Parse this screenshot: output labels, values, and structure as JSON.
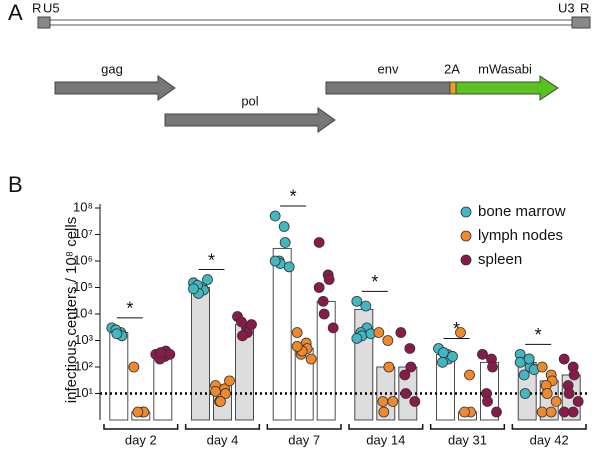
{
  "diagram": {
    "panel": "A",
    "ltr_left": [
      "R",
      "U5"
    ],
    "ltr_right": [
      "U3",
      "R"
    ],
    "genes": [
      "gag",
      "pol",
      "env",
      "2A",
      "mWasabi"
    ]
  },
  "chart_data": {
    "type": "dot_bar",
    "panel": "B",
    "y_label": "infectious centers / 10⁸ cells",
    "categories": [
      "day 2",
      "day 4",
      "day 7",
      "day 14",
      "day 31",
      "day 42"
    ],
    "log_y": true,
    "ylim": [
      1,
      100000000
    ],
    "yticks": [
      {
        "value": 10,
        "label": "10¹"
      },
      {
        "value": 100,
        "label": "10²"
      },
      {
        "value": 1000,
        "label": "10³"
      },
      {
        "value": 10000,
        "label": "10⁴"
      },
      {
        "value": 100000,
        "label": "10⁵"
      },
      {
        "value": 1000000,
        "label": "10⁶"
      },
      {
        "value": 10000000,
        "label": "10⁷"
      },
      {
        "value": 100000000,
        "label": "10⁸"
      }
    ],
    "reference_line": 10,
    "significance": [
      "*",
      "*",
      "*",
      "*",
      "*",
      "*"
    ],
    "legend": "upper right",
    "series": [
      {
        "name": "bone marrow",
        "color": "#41b7c1",
        "values": [
          2000,
          100000,
          3000000,
          15000,
          300,
          150
        ],
        "points": [
          [
            3000,
            2000,
            1500,
            2500,
            1800
          ],
          [
            150000,
            100000,
            80000,
            120000,
            60000,
            200000,
            90000
          ],
          [
            50000000,
            20000000,
            5000000,
            1000000,
            800000,
            600000,
            1000000
          ],
          [
            30000,
            20000,
            3000,
            2000,
            1500,
            1800,
            1200
          ],
          [
            500,
            300,
            200,
            150,
            350,
            250
          ],
          [
            300,
            200,
            100,
            50,
            10,
            80,
            150,
            200
          ]
        ]
      },
      {
        "name": "lymph nodes",
        "color": "#f0892c",
        "values": [
          2,
          20,
          500,
          100,
          2,
          30
        ],
        "points": [
          [
            100,
            2,
            2,
            2
          ],
          [
            20,
            15,
            10,
            5,
            5,
            30,
            12
          ],
          [
            2000,
            800,
            500,
            300,
            400,
            200,
            600
          ],
          [
            2000,
            1000,
            100,
            5,
            2,
            5
          ],
          [
            2000,
            50,
            2,
            2
          ],
          [
            100,
            50,
            30,
            20,
            10,
            5,
            2,
            2
          ]
        ]
      },
      {
        "name": "spleen",
        "color": "#8a1a4c",
        "values": [
          300,
          4000,
          30000,
          100,
          150,
          50
        ],
        "points": [
          [
            300,
            250,
            400,
            200,
            350,
            300
          ],
          [
            8000,
            3000,
            2000,
            5000,
            1500,
            4000
          ],
          [
            5000000,
            300000,
            200000,
            30000,
            10000,
            3000,
            100000
          ],
          [
            2000,
            500,
            100,
            50,
            10,
            5
          ],
          [
            300,
            200,
            100,
            10,
            5,
            2
          ],
          [
            200,
            100,
            50,
            20,
            10,
            5,
            2,
            2
          ]
        ]
      }
    ]
  }
}
